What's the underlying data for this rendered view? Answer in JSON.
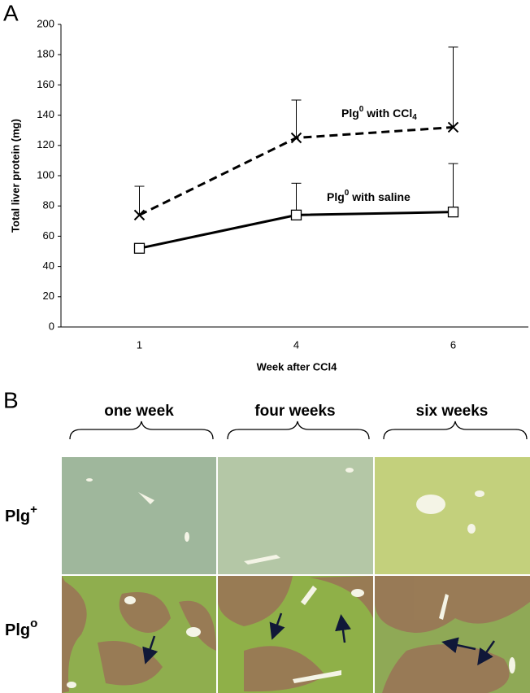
{
  "chart_data": {
    "type": "line",
    "panel_label": "A",
    "x_label": "Week after CCl4",
    "y_label": "Total liver protein (mg)",
    "categories": [
      "1",
      "4",
      "6"
    ],
    "ylim": [
      0,
      200
    ],
    "yticks": [
      0,
      20,
      40,
      60,
      80,
      100,
      120,
      140,
      160,
      180,
      200
    ],
    "series": [
      {
        "label": {
          "base": "Plg",
          "sup": "0",
          "text": " with CCl",
          "sub": "4"
        },
        "color": "#000000",
        "dash": true,
        "marker": "x",
        "values": [
          74,
          125,
          132
        ],
        "errors": [
          19,
          25,
          53
        ]
      },
      {
        "label": {
          "base": "Plg",
          "sup": "0",
          "text": " with saline"
        },
        "color": "#000000",
        "dash": false,
        "marker": "square",
        "values": [
          52,
          74,
          76
        ],
        "errors": [
          null,
          21,
          32
        ]
      }
    ]
  },
  "panel_b": {
    "label": "B",
    "columns": [
      "one week",
      "four weeks",
      "six weeks"
    ],
    "rows": [
      {
        "base": "Plg",
        "sup": "+"
      },
      {
        "base": "Plg",
        "sup": "o"
      }
    ]
  }
}
